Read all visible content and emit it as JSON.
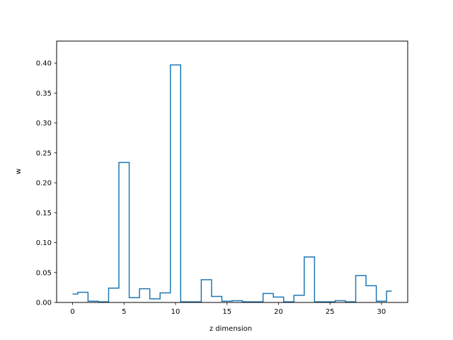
{
  "chart_data": {
    "type": "line",
    "style": "step-mid",
    "title": "",
    "xlabel": "z dimension",
    "ylabel": "w",
    "xlim": [
      -1.55,
      32.55
    ],
    "ylim": [
      0,
      0.4368
    ],
    "xticks": [
      0,
      5,
      10,
      15,
      20,
      25,
      30
    ],
    "xtick_labels": [
      "0",
      "5",
      "10",
      "15",
      "20",
      "25",
      "30"
    ],
    "yticks": [
      0.0,
      0.05,
      0.1,
      0.15,
      0.2,
      0.25,
      0.3,
      0.35,
      0.4
    ],
    "ytick_labels": [
      "0.00",
      "0.05",
      "0.10",
      "0.15",
      "0.20",
      "0.25",
      "0.30",
      "0.35",
      "0.40"
    ],
    "grid": false,
    "legend": null,
    "series": [
      {
        "color": "#1f77b4",
        "x": [
          0,
          1,
          2,
          3,
          4,
          5,
          6,
          7,
          8,
          9,
          10,
          11,
          12,
          13,
          14,
          15,
          16,
          17,
          18,
          19,
          20,
          21,
          22,
          23,
          24,
          25,
          26,
          27,
          28,
          29,
          30,
          31
        ],
        "values": [
          0.014,
          0.017,
          0.002,
          0.001,
          0.024,
          0.234,
          0.008,
          0.023,
          0.006,
          0.016,
          0.397,
          0.001,
          0.001,
          0.038,
          0.01,
          0.002,
          0.003,
          0.001,
          0.001,
          0.015,
          0.009,
          0.001,
          0.012,
          0.076,
          0.001,
          0.001,
          0.003,
          0.001,
          0.045,
          0.028,
          0.002,
          0.019
        ]
      }
    ]
  }
}
